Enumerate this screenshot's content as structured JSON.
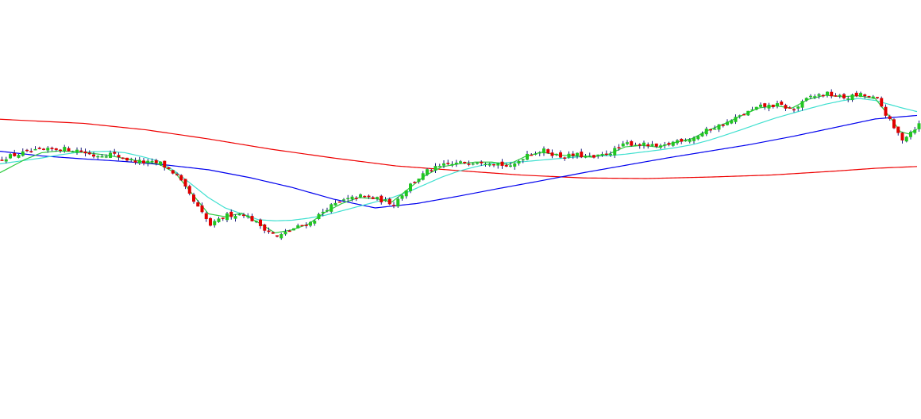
{
  "chart_data": {
    "type": "candlestick",
    "title": "",
    "xlabel": "",
    "ylabel": "",
    "axes_visible": false,
    "grid": false,
    "legend": "none",
    "ylim": [
      0,
      100
    ],
    "colors": {
      "up": "#22c522",
      "down": "#e00000",
      "wick": "#1a1a7a",
      "ma_short": "#2ecc40",
      "ma_medium": "#40e0d0",
      "ma_long": "#0000ee",
      "ma_very_long": "#ee0000"
    },
    "close_anchors": [
      [
        0,
        57
      ],
      [
        6,
        59
      ],
      [
        10,
        59.5
      ],
      [
        14,
        60.2
      ],
      [
        18,
        59.7
      ],
      [
        22,
        57.8
      ],
      [
        26,
        58.5
      ],
      [
        30,
        56.5
      ],
      [
        34,
        55.5
      ],
      [
        38,
        55.2
      ],
      [
        42,
        51
      ],
      [
        46,
        42
      ],
      [
        50,
        34
      ],
      [
        54,
        37.5
      ],
      [
        58,
        38
      ],
      [
        62,
        34
      ],
      [
        66,
        30
      ],
      [
        70,
        33
      ],
      [
        74,
        35
      ],
      [
        78,
        40
      ],
      [
        82,
        42.5
      ],
      [
        86,
        44
      ],
      [
        90,
        43
      ],
      [
        94,
        41.5
      ],
      [
        98,
        48
      ],
      [
        102,
        52.5
      ],
      [
        106,
        54.5
      ],
      [
        110,
        55.3
      ],
      [
        114,
        56
      ],
      [
        118,
        55.6
      ],
      [
        122,
        53.7
      ],
      [
        126,
        58.5
      ],
      [
        130,
        59.5
      ],
      [
        134,
        57.5
      ],
      [
        138,
        58
      ],
      [
        142,
        57
      ],
      [
        146,
        59
      ],
      [
        150,
        62
      ],
      [
        154,
        61.5
      ],
      [
        158,
        60.5
      ],
      [
        162,
        63
      ],
      [
        166,
        64
      ],
      [
        170,
        67
      ],
      [
        174,
        69
      ],
      [
        178,
        72
      ],
      [
        182,
        74.5
      ],
      [
        186,
        75
      ],
      [
        190,
        73.5
      ],
      [
        194,
        78
      ],
      [
        198,
        78.8
      ],
      [
        202,
        77.5
      ],
      [
        206,
        78.5
      ],
      [
        210,
        77
      ],
      [
        214,
        67
      ],
      [
        216,
        63.5
      ],
      [
        218,
        66
      ],
      [
        220,
        68.5
      ]
    ],
    "ma_short_points": [
      [
        0,
        52
      ],
      [
        6,
        56.5
      ],
      [
        10,
        58.8
      ],
      [
        14,
        59.4
      ],
      [
        18,
        59.2
      ],
      [
        22,
        58.6
      ],
      [
        26,
        57.9
      ],
      [
        30,
        56.8
      ],
      [
        34,
        55.8
      ],
      [
        38,
        55
      ],
      [
        42,
        52
      ],
      [
        46,
        45
      ],
      [
        50,
        38
      ],
      [
        54,
        37
      ],
      [
        58,
        38.2
      ],
      [
        62,
        35
      ],
      [
        66,
        31.5
      ],
      [
        70,
        32.5
      ],
      [
        74,
        34.5
      ],
      [
        78,
        38.5
      ],
      [
        82,
        41.5
      ],
      [
        86,
        43.5
      ],
      [
        90,
        43.2
      ],
      [
        94,
        42
      ],
      [
        98,
        46.5
      ],
      [
        102,
        51
      ],
      [
        106,
        54
      ],
      [
        110,
        55
      ],
      [
        114,
        55.6
      ],
      [
        118,
        55.6
      ],
      [
        122,
        54.8
      ],
      [
        126,
        57.5
      ],
      [
        130,
        59
      ],
      [
        134,
        58
      ],
      [
        138,
        57.7
      ],
      [
        142,
        57.3
      ],
      [
        146,
        58.3
      ],
      [
        150,
        60.8
      ],
      [
        154,
        61.3
      ],
      [
        158,
        60.7
      ],
      [
        162,
        62.3
      ],
      [
        166,
        63.6
      ],
      [
        170,
        66.5
      ],
      [
        174,
        68.8
      ],
      [
        178,
        71.5
      ],
      [
        182,
        74
      ],
      [
        186,
        74.8
      ],
      [
        190,
        74
      ],
      [
        194,
        77
      ],
      [
        198,
        78.4
      ],
      [
        202,
        77.9
      ],
      [
        206,
        78.2
      ],
      [
        210,
        77.2
      ],
      [
        214,
        70
      ],
      [
        216,
        66
      ],
      [
        218,
        65.2
      ],
      [
        220,
        66.8
      ]
    ],
    "ma_medium_points": [
      [
        0,
        55
      ],
      [
        6,
        56.2
      ],
      [
        10,
        57
      ],
      [
        14,
        58
      ],
      [
        18,
        58.8
      ],
      [
        22,
        59.1
      ],
      [
        26,
        59.3
      ],
      [
        30,
        58.8
      ],
      [
        34,
        57.5
      ],
      [
        38,
        56
      ],
      [
        42,
        52.5
      ],
      [
        46,
        48
      ],
      [
        50,
        43.5
      ],
      [
        54,
        40
      ],
      [
        58,
        38
      ],
      [
        62,
        36
      ],
      [
        66,
        35.6
      ],
      [
        70,
        35.8
      ],
      [
        74,
        36.5
      ],
      [
        78,
        37.5
      ],
      [
        82,
        39
      ],
      [
        86,
        40.5
      ],
      [
        90,
        42
      ],
      [
        94,
        43.5
      ],
      [
        98,
        45.5
      ],
      [
        102,
        48
      ],
      [
        106,
        50.5
      ],
      [
        110,
        52.5
      ],
      [
        114,
        54
      ],
      [
        118,
        55.2
      ],
      [
        122,
        55.5
      ],
      [
        126,
        55.8
      ],
      [
        130,
        56.3
      ],
      [
        134,
        56.8
      ],
      [
        138,
        57.3
      ],
      [
        142,
        57.6
      ],
      [
        146,
        57.8
      ],
      [
        150,
        58.3
      ],
      [
        154,
        59
      ],
      [
        158,
        59.7
      ],
      [
        162,
        60.5
      ],
      [
        166,
        61.5
      ],
      [
        170,
        63
      ],
      [
        174,
        64.8
      ],
      [
        178,
        66.7
      ],
      [
        182,
        68.7
      ],
      [
        186,
        70.6
      ],
      [
        190,
        72.2
      ],
      [
        194,
        73.8
      ],
      [
        198,
        75.3
      ],
      [
        202,
        76.5
      ],
      [
        206,
        77.3
      ],
      [
        210,
        76.6
      ],
      [
        214,
        75
      ],
      [
        216,
        74.2
      ],
      [
        218,
        73.5
      ],
      [
        220,
        72.8
      ]
    ],
    "ma_long_points": [
      [
        0,
        59.3
      ],
      [
        10,
        57.7
      ],
      [
        20,
        56.7
      ],
      [
        30,
        55.8
      ],
      [
        40,
        54.6
      ],
      [
        50,
        53
      ],
      [
        60,
        50.3
      ],
      [
        70,
        47
      ],
      [
        80,
        43
      ],
      [
        90,
        40
      ],
      [
        100,
        41.5
      ],
      [
        104,
        42.5
      ],
      [
        110,
        44
      ],
      [
        120,
        46.7
      ],
      [
        130,
        49.3
      ],
      [
        140,
        52
      ],
      [
        150,
        54.5
      ],
      [
        160,
        57
      ],
      [
        170,
        59.3
      ],
      [
        180,
        61.6
      ],
      [
        190,
        64.3
      ],
      [
        200,
        67.3
      ],
      [
        210,
        70.3
      ],
      [
        220,
        71.5
      ]
    ],
    "ma_very_long_points": [
      [
        0,
        70.2
      ],
      [
        20,
        68.8
      ],
      [
        35,
        66.6
      ],
      [
        50,
        63.5
      ],
      [
        65,
        60
      ],
      [
        80,
        57
      ],
      [
        95,
        54.3
      ],
      [
        110,
        52.7
      ],
      [
        125,
        51.2
      ],
      [
        140,
        50.2
      ],
      [
        155,
        50
      ],
      [
        170,
        50.5
      ],
      [
        185,
        51.2
      ],
      [
        200,
        52.5
      ],
      [
        210,
        53.5
      ],
      [
        220,
        54.1
      ]
    ]
  }
}
